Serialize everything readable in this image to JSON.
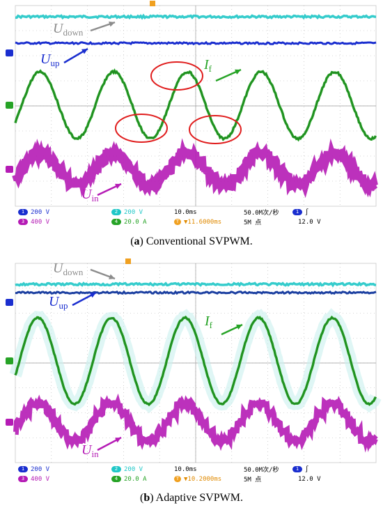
{
  "colors": {
    "ch1": "#1a2ecf",
    "ch2": "#1fc7c7",
    "ch3": "#b51bb5",
    "ch4": "#26a326",
    "udown_label": "#8c8c8c",
    "highlight": "#e01c1c",
    "grid": "#b0b0b0"
  },
  "chart_data": [
    {
      "type": "line",
      "panel": "a",
      "caption": {
        "letter": "a",
        "text": "Conventional SVPWM."
      },
      "grid": true,
      "grid_divisions": {
        "x": 10,
        "y": 8
      },
      "series": [
        {
          "name": "Udown",
          "channel": 2,
          "kind": "dc",
          "scale": "200 V"
        },
        {
          "name": "Uup",
          "channel": 1,
          "kind": "dc",
          "scale": "200 V"
        },
        {
          "name": "If",
          "channel": 4,
          "kind": "sine",
          "scale": "20.0 A",
          "periods_on_screen": 4.9
        },
        {
          "name": "Uin",
          "channel": 3,
          "kind": "multilevel",
          "scale": "400 V",
          "periods_on_screen": 4.9
        }
      ],
      "labels": {
        "udown": {
          "main": "U",
          "sub": "down"
        },
        "uup": {
          "main": "U",
          "sub": "up"
        },
        "if": {
          "main": "I",
          "sub": "f"
        },
        "uin": {
          "main": "U",
          "sub": "in"
        }
      },
      "highlights": [
        "peak",
        "trough",
        "trough"
      ],
      "status": {
        "ch1_scale": "200 V",
        "ch2_scale": "200 V",
        "ch3_scale": "400 V",
        "ch4_scale": "20.0 A",
        "timebase": "10.0ms",
        "trigger_pos": "▼11.6000ms",
        "sample_rate": "50.0M次/秒",
        "record_length": "5M 点",
        "trigger_ch": "1",
        "trigger_slope": "∫",
        "trigger_level": "12.0 V"
      }
    },
    {
      "type": "line",
      "panel": "b",
      "caption": {
        "letter": "b",
        "text": "Adaptive SVPWM."
      },
      "grid": true,
      "grid_divisions": {
        "x": 10,
        "y": 8
      },
      "series": [
        {
          "name": "Udown",
          "channel": 2,
          "kind": "dc",
          "scale": "200 V"
        },
        {
          "name": "Uup",
          "channel": 1,
          "kind": "dc",
          "scale": "200 V"
        },
        {
          "name": "If",
          "channel": 4,
          "kind": "sine",
          "scale": "20.0 A",
          "periods_on_screen": 4.9
        },
        {
          "name": "Uin",
          "channel": 3,
          "kind": "multilevel",
          "scale": "400 V",
          "periods_on_screen": 4.9
        }
      ],
      "labels": {
        "udown": {
          "main": "U",
          "sub": "down"
        },
        "uup": {
          "main": "U",
          "sub": "up"
        },
        "if": {
          "main": "I",
          "sub": "f"
        },
        "uin": {
          "main": "U",
          "sub": "in"
        }
      },
      "highlights": [],
      "status": {
        "ch1_scale": "200 V",
        "ch2_scale": "200 V",
        "ch3_scale": "400 V",
        "ch4_scale": "20.0 A",
        "timebase": "10.0ms",
        "trigger_pos": "▼10.2000ms",
        "sample_rate": "50.0M次/秒",
        "record_length": "5M 点",
        "trigger_ch": "1",
        "trigger_slope": "∫",
        "trigger_level": "12.0 V"
      }
    }
  ]
}
